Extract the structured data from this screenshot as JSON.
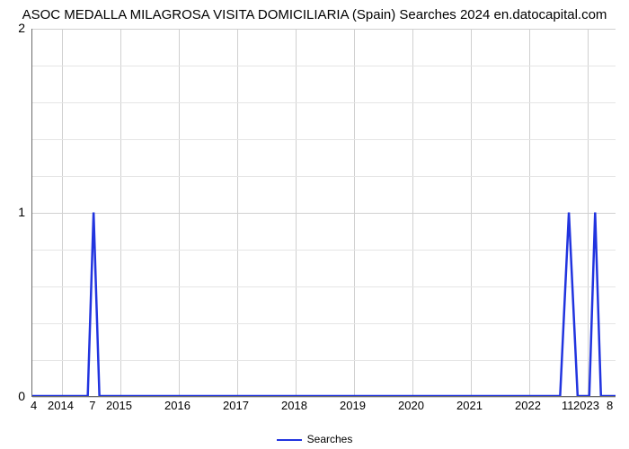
{
  "chart": {
    "type": "line",
    "title": "ASOC MEDALLA MILAGROSA VISITA DOMICILIARIA (Spain) Searches 2024 en.datocapital.com",
    "title_fontsize": 15,
    "title_color": "#000000",
    "background_color": "#ffffff",
    "grid_color": "#d0d0d0",
    "grid_minor_color": "#e5e5e5",
    "axis_color": "#6b6b6b",
    "line_color": "#2134df",
    "line_width": 2.5,
    "ylim": [
      0,
      2
    ],
    "ytick_positions": [
      0,
      1,
      2
    ],
    "ytick_labels": [
      "0",
      "1",
      "2"
    ],
    "y_minor_divisions": 5,
    "xlim": [
      2013.5,
      2023.5
    ],
    "xtick_positions": [
      2014,
      2015,
      2016,
      2017,
      2018,
      2019,
      2020,
      2021,
      2022,
      2023
    ],
    "xtick_labels": [
      "2014",
      "2015",
      "2016",
      "2017",
      "2018",
      "2019",
      "2020",
      "2021",
      "2022",
      "2023"
    ],
    "corner_labels": {
      "bottom_left": "4",
      "above_bottom_right": "11",
      "bottom_right": "8",
      "above_mid_left": "7"
    },
    "series": {
      "name": "Searches",
      "points": [
        [
          2013.5,
          0
        ],
        [
          2014.45,
          0
        ],
        [
          2014.55,
          1
        ],
        [
          2014.65,
          0
        ],
        [
          2022.55,
          0
        ],
        [
          2022.7,
          1
        ],
        [
          2022.85,
          0
        ],
        [
          2023.05,
          0
        ],
        [
          2023.15,
          1
        ],
        [
          2023.25,
          0
        ],
        [
          2023.5,
          0
        ]
      ]
    },
    "legend_label": "Searches"
  }
}
